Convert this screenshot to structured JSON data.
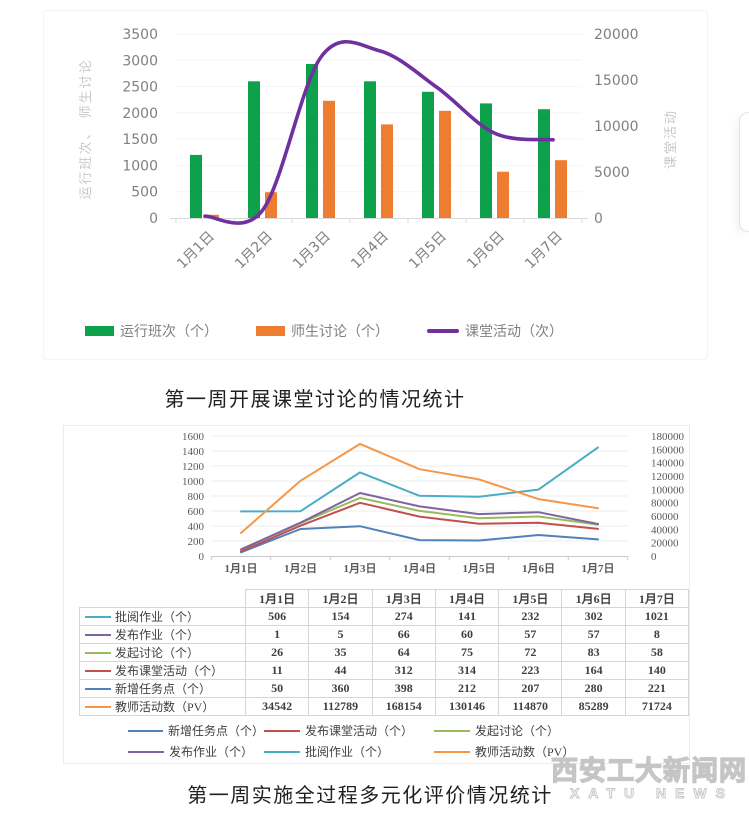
{
  "chart_data": [
    {
      "type": "bar",
      "subtype": "bar-line-combo",
      "caption": "第一周开展课堂讨论的情况统计",
      "categories": [
        "1月1日",
        "1月2日",
        "1月3日",
        "1月4日",
        "1月5日",
        "1月6日",
        "1月7日"
      ],
      "series": [
        {
          "name": "运行班次（个）",
          "slug": "class-runs",
          "type": "bar",
          "axis": "left",
          "color": "#0da14b",
          "values": [
            1200,
            2600,
            2930,
            2600,
            2400,
            2180,
            2070
          ]
        },
        {
          "name": "师生讨论（个）",
          "slug": "teacher-student-discussions",
          "type": "bar",
          "axis": "left",
          "color": "#ed7d31",
          "values": [
            60,
            490,
            2230,
            1780,
            2040,
            880,
            1100
          ]
        },
        {
          "name": "课堂活动（次）",
          "slug": "classroom-activities",
          "type": "line",
          "axis": "right",
          "color": "#7030a0",
          "values": [
            200,
            900,
            17500,
            18200,
            14200,
            9200,
            8500
          ]
        }
      ],
      "y_left": {
        "label": "运行班次、 师生讨论",
        "min": 0,
        "max": 3500,
        "step": 500
      },
      "y_right": {
        "label": "课堂活动",
        "min": 0,
        "max": 20000,
        "step": 5000
      },
      "grid": "horizontal-faint",
      "legend_position": "bottom"
    },
    {
      "type": "line",
      "stacked": true,
      "caption": "第一周实施全过程多元化评价情况统计",
      "categories": [
        "1月1日",
        "1月2日",
        "1月3日",
        "1月4日",
        "1月5日",
        "1月6日",
        "1月7日"
      ],
      "series": [
        {
          "name": "批阅作业（个）",
          "slug": "reviewed-homework",
          "color": "#4bacc6",
          "axis": "left",
          "values": [
            506,
            154,
            274,
            141,
            232,
            302,
            1021
          ]
        },
        {
          "name": "发布作业（个）",
          "slug": "published-homework",
          "color": "#8064a2",
          "axis": "left",
          "values": [
            1,
            5,
            66,
            60,
            57,
            57,
            8
          ]
        },
        {
          "name": "发起讨论（个）",
          "slug": "initiated-discussion",
          "color": "#9bbb59",
          "axis": "left",
          "values": [
            26,
            35,
            64,
            75,
            72,
            83,
            58
          ]
        },
        {
          "name": "发布课堂活动（个）",
          "slug": "published-class-activity",
          "color": "#c0504d",
          "axis": "left",
          "values": [
            11,
            44,
            312,
            314,
            223,
            164,
            140
          ]
        },
        {
          "name": "新增任务点（个）",
          "slug": "new-task-points",
          "color": "#4f81bd",
          "axis": "left",
          "values": [
            50,
            360,
            398,
            212,
            207,
            280,
            221
          ]
        },
        {
          "name": "教师活动数（PV）",
          "slug": "teacher-activity-pv",
          "color": "#f79646",
          "axis": "right",
          "values": [
            34542,
            112789,
            168154,
            130146,
            114870,
            85289,
            71724
          ]
        }
      ],
      "stack_indices_bottom_to_top": [
        4,
        3,
        2,
        1,
        0
      ],
      "right_axis_series_index": 5,
      "legend_layout": [
        [
          4,
          3,
          2
        ],
        [
          1,
          0,
          5
        ]
      ],
      "y_left": {
        "min": 0,
        "max": 1600,
        "step": 200
      },
      "y_right": {
        "min": 0,
        "max": 180000,
        "step": 20000
      },
      "grid": "horizontal-faint",
      "table_below_chart": true,
      "legend_position": "bottom"
    }
  ],
  "watermark": {
    "line1": "西安工大新闻网",
    "line2": "XATU NEWS"
  }
}
